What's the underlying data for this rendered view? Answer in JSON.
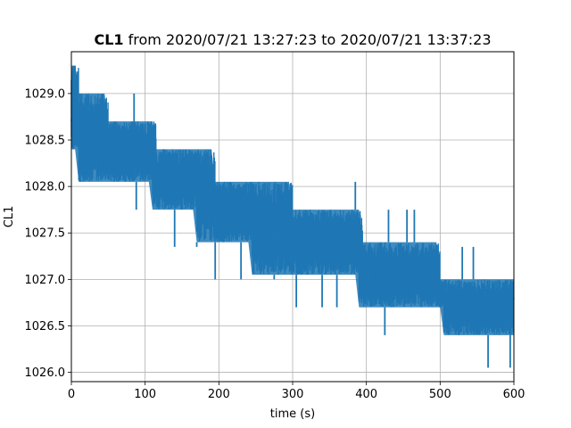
{
  "chart_data": {
    "type": "line",
    "title_bold": "CL1",
    "title_rest": " from 2020/07/21 13:27:23 to 2020/07/21 13:37:23",
    "xlabel": "time (s)",
    "ylabel": "CL1",
    "xlim": [
      0,
      600
    ],
    "ylim": [
      1025.9,
      1029.45
    ],
    "x_ticks": [
      0,
      100,
      200,
      300,
      400,
      500,
      600
    ],
    "x_tick_labels": [
      "0",
      "100",
      "200",
      "300",
      "400",
      "500",
      "600"
    ],
    "y_ticks": [
      1026.0,
      1026.5,
      1027.0,
      1027.5,
      1028.0,
      1028.5,
      1029.0
    ],
    "y_tick_labels": [
      "1026.0",
      "1026.5",
      "1027.0",
      "1027.5",
      "1028.0",
      "1028.5",
      "1029.0"
    ],
    "grid": true,
    "series": [
      {
        "color": "#1f77b4",
        "x": [
          0,
          5,
          10,
          15,
          20,
          25,
          30,
          35,
          40,
          45,
          50,
          55,
          60,
          65,
          70,
          75,
          80,
          85,
          90,
          95,
          100,
          105,
          110,
          115,
          120,
          125,
          130,
          135,
          140,
          145,
          150,
          155,
          160,
          165,
          170,
          175,
          180,
          185,
          190,
          195,
          200,
          205,
          210,
          215,
          220,
          225,
          230,
          235,
          240,
          245,
          250,
          255,
          260,
          265,
          270,
          275,
          280,
          285,
          290,
          295,
          300,
          305,
          310,
          315,
          320,
          325,
          330,
          335,
          340,
          345,
          350,
          355,
          360,
          365,
          370,
          375,
          380,
          385,
          390,
          395,
          400,
          405,
          410,
          415,
          420,
          425,
          430,
          435,
          440,
          445,
          450,
          455,
          460,
          465,
          470,
          475,
          480,
          485,
          490,
          495,
          500,
          505,
          510,
          515,
          520,
          525,
          530,
          535,
          540,
          545,
          550,
          555,
          560,
          565,
          570,
          575,
          580,
          585,
          590,
          595,
          600
        ],
        "y": [
          1028.7,
          1029.3,
          1028.4,
          1028.1,
          1028.9,
          1028.6,
          1028.8,
          1028.2,
          1028.7,
          1028.9,
          1028.3,
          1028.6,
          1028.4,
          1028.2,
          1028.6,
          1028.3,
          1028.5,
          1028.7,
          1028.2,
          1028.4,
          1028.6,
          1028.2,
          1028.3,
          1028.1,
          1028.2,
          1028.4,
          1028.1,
          1028.3,
          1028.2,
          1027.9,
          1028.1,
          1028.3,
          1028.0,
          1027.8,
          1028.2,
          1028.0,
          1027.9,
          1028.3,
          1027.8,
          1027.6,
          1027.9,
          1027.8,
          1027.6,
          1027.9,
          1027.7,
          1027.5,
          1027.8,
          1027.9,
          1027.6,
          1027.4,
          1027.7,
          1027.8,
          1027.5,
          1027.6,
          1027.9,
          1027.4,
          1027.6,
          1027.3,
          1027.5,
          1027.7,
          1027.4,
          1027.6,
          1027.3,
          1027.5,
          1027.2,
          1027.4,
          1027.6,
          1027.3,
          1027.5,
          1027.2,
          1027.4,
          1027.3,
          1027.1,
          1027.5,
          1027.3,
          1027.2,
          1027.4,
          1027.6,
          1027.1,
          1027.3,
          1027.2,
          1027.0,
          1027.3,
          1027.1,
          1027.2,
          1027.0,
          1026.9,
          1027.2,
          1027.0,
          1027.1,
          1026.9,
          1027.2,
          1027.0,
          1026.8,
          1027.1,
          1026.9,
          1027.0,
          1026.8,
          1027.1,
          1026.9,
          1026.7,
          1026.9,
          1026.8,
          1026.6,
          1026.9,
          1026.7,
          1026.8,
          1026.6,
          1026.9,
          1026.7,
          1026.8,
          1026.6,
          1026.9,
          1026.7,
          1026.5,
          1026.8,
          1026.6,
          1026.9,
          1026.7,
          1026.5,
          1026.8
        ],
        "band_low": [
          1028.4,
          1028.4,
          1028.05,
          1028.05,
          1028.05,
          1028.05,
          1028.05,
          1028.05,
          1028.05,
          1028.05,
          1028.05,
          1028.05,
          1028.05,
          1028.05,
          1028.05,
          1028.05,
          1028.05,
          1028.05,
          1028.05,
          1028.05,
          1028.05,
          1028.05,
          1027.75,
          1027.75,
          1027.75,
          1027.75,
          1027.75,
          1027.75,
          1027.75,
          1027.75,
          1027.75,
          1027.75,
          1027.75,
          1027.75,
          1027.4,
          1027.4,
          1027.4,
          1027.4,
          1027.4,
          1027.4,
          1027.4,
          1027.4,
          1027.4,
          1027.4,
          1027.4,
          1027.4,
          1027.4,
          1027.4,
          1027.4,
          1027.05,
          1027.05,
          1027.05,
          1027.05,
          1027.05,
          1027.05,
          1027.05,
          1027.05,
          1027.05,
          1027.05,
          1027.05,
          1027.05,
          1027.05,
          1027.05,
          1027.05,
          1027.05,
          1027.05,
          1027.05,
          1027.05,
          1027.05,
          1027.05,
          1027.05,
          1027.05,
          1027.05,
          1027.05,
          1027.05,
          1027.05,
          1027.05,
          1027.05,
          1026.7,
          1026.7,
          1026.7,
          1026.7,
          1026.7,
          1026.7,
          1026.7,
          1026.7,
          1026.7,
          1026.7,
          1026.7,
          1026.7,
          1026.7,
          1026.7,
          1026.7,
          1026.7,
          1026.7,
          1026.7,
          1026.7,
          1026.7,
          1026.7,
          1026.7,
          1026.7,
          1026.4,
          1026.4,
          1026.4,
          1026.4,
          1026.4,
          1026.4,
          1026.4,
          1026.4,
          1026.4,
          1026.4,
          1026.4,
          1026.4,
          1026.4,
          1026.4,
          1026.4,
          1026.4,
          1026.4,
          1026.4,
          1026.4,
          1026.4
        ],
        "band_high": [
          1029.3,
          1029.3,
          1029.0,
          1029.0,
          1029.0,
          1029.0,
          1029.0,
          1029.0,
          1029.0,
          1029.0,
          1028.7,
          1028.7,
          1028.7,
          1028.7,
          1028.7,
          1028.7,
          1028.7,
          1028.7,
          1028.7,
          1028.7,
          1028.7,
          1028.7,
          1028.7,
          1028.4,
          1028.4,
          1028.4,
          1028.4,
          1028.4,
          1028.4,
          1028.4,
          1028.4,
          1028.4,
          1028.4,
          1028.4,
          1028.4,
          1028.4,
          1028.4,
          1028.4,
          1028.4,
          1028.05,
          1028.05,
          1028.05,
          1028.05,
          1028.05,
          1028.05,
          1028.05,
          1028.05,
          1028.05,
          1028.05,
          1028.05,
          1028.05,
          1028.05,
          1028.05,
          1028.05,
          1028.05,
          1028.05,
          1028.05,
          1028.05,
          1028.05,
          1028.05,
          1027.75,
          1027.75,
          1027.75,
          1027.75,
          1027.75,
          1027.75,
          1027.75,
          1027.75,
          1027.75,
          1027.75,
          1027.75,
          1027.75,
          1027.75,
          1027.75,
          1027.75,
          1027.75,
          1027.75,
          1027.75,
          1027.75,
          1027.4,
          1027.4,
          1027.4,
          1027.4,
          1027.4,
          1027.4,
          1027.4,
          1027.4,
          1027.4,
          1027.4,
          1027.4,
          1027.4,
          1027.4,
          1027.4,
          1027.4,
          1027.4,
          1027.4,
          1027.4,
          1027.4,
          1027.4,
          1027.4,
          1027.0,
          1027.0,
          1027.0,
          1027.0,
          1027.0,
          1027.0,
          1027.0,
          1027.0,
          1027.0,
          1027.0,
          1027.0,
          1027.0,
          1027.0,
          1027.0,
          1027.0,
          1027.0,
          1027.0,
          1027.0,
          1027.0,
          1027.0,
          1027.0
        ]
      }
    ],
    "spikes": [
      {
        "x": 3,
        "y": 1029.3
      },
      {
        "x": 12,
        "y": 1029.0
      },
      {
        "x": 85,
        "y": 1029.0
      },
      {
        "x": 88,
        "y": 1027.75
      },
      {
        "x": 125,
        "y": 1027.75
      },
      {
        "x": 140,
        "y": 1027.35
      },
      {
        "x": 170,
        "y": 1027.35
      },
      {
        "x": 195,
        "y": 1027.0
      },
      {
        "x": 230,
        "y": 1027.0
      },
      {
        "x": 275,
        "y": 1027.0
      },
      {
        "x": 305,
        "y": 1026.7
      },
      {
        "x": 340,
        "y": 1026.7
      },
      {
        "x": 360,
        "y": 1026.7
      },
      {
        "x": 385,
        "y": 1028.05
      },
      {
        "x": 395,
        "y": 1026.7
      },
      {
        "x": 425,
        "y": 1026.4
      },
      {
        "x": 430,
        "y": 1027.75
      },
      {
        "x": 455,
        "y": 1027.75
      },
      {
        "x": 465,
        "y": 1027.75
      },
      {
        "x": 530,
        "y": 1027.35
      },
      {
        "x": 545,
        "y": 1027.35
      },
      {
        "x": 565,
        "y": 1026.05
      },
      {
        "x": 595,
        "y": 1026.05
      }
    ]
  }
}
